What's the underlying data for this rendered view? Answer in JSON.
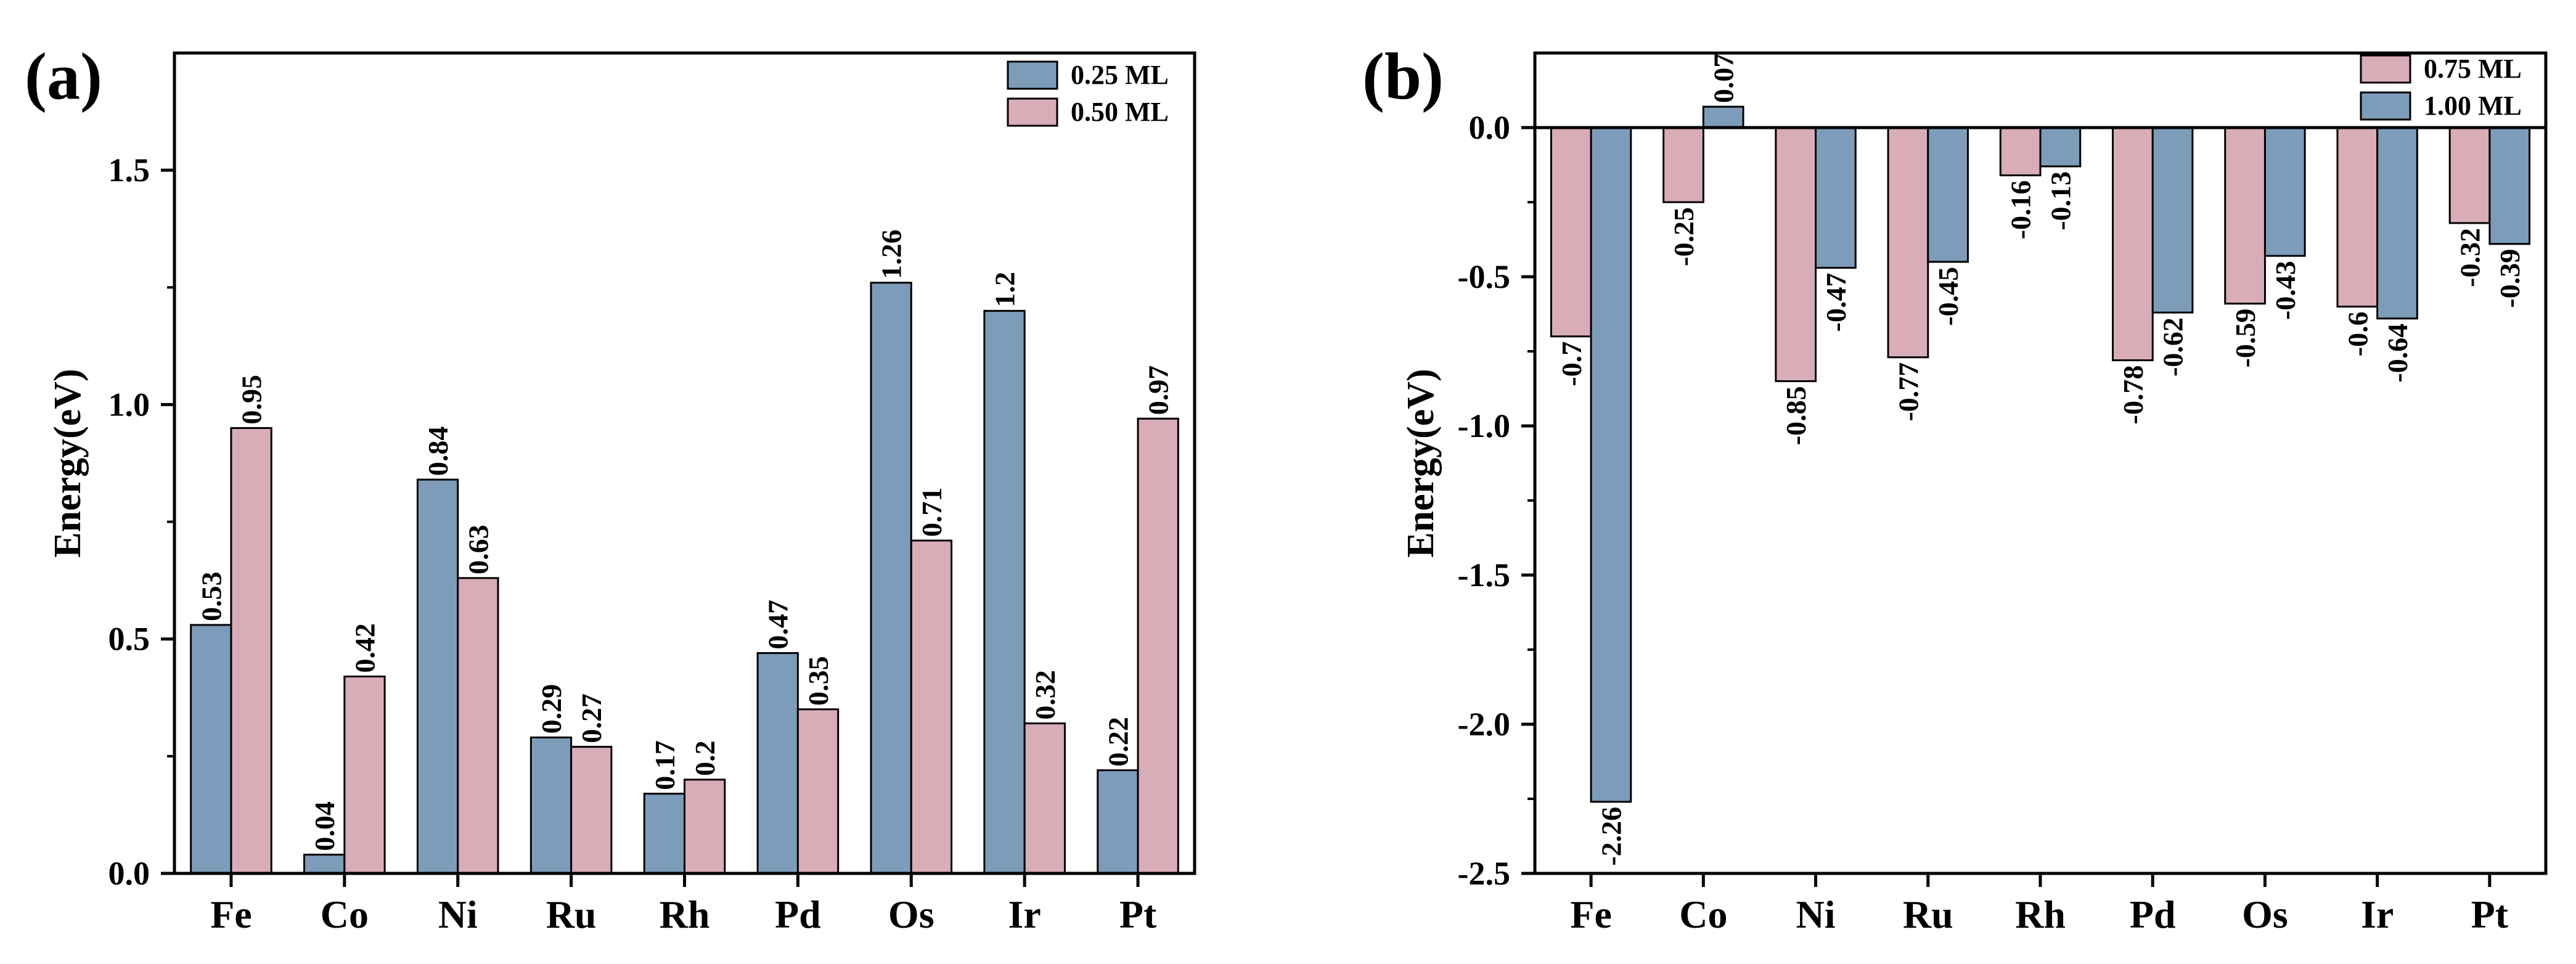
{
  "colors": {
    "blue": "#7c9cba",
    "pink": "#d9adb8",
    "axis": "#000000"
  },
  "chart_data": [
    {
      "type": "bar",
      "panel_label": "(a)",
      "title": "",
      "xlabel": "",
      "ylabel": "Energy(eV)",
      "categories": [
        "Fe",
        "Co",
        "Ni",
        "Ru",
        "Rh",
        "Pd",
        "Os",
        "Ir",
        "Pt"
      ],
      "ylim": [
        0,
        1.75
      ],
      "yticks": [
        0.0,
        0.5,
        1.0,
        1.5
      ],
      "ytick_labels": [
        "0.0",
        "0.5",
        "1.0",
        "1.5"
      ],
      "legend_position": "top-right",
      "series": [
        {
          "name": "0.25 ML",
          "color": "#7c9cba",
          "values": [
            0.53,
            0.04,
            0.84,
            0.29,
            0.17,
            0.47,
            1.26,
            1.2,
            0.22
          ],
          "labels": [
            "0.53",
            "0.04",
            "0.84",
            "0.29",
            "0.17",
            "0.47",
            "1.26",
            "1.2",
            "0.22"
          ]
        },
        {
          "name": "0.50 ML",
          "color": "#d9adb8",
          "values": [
            0.95,
            0.42,
            0.63,
            0.27,
            0.2,
            0.35,
            0.71,
            0.32,
            0.97
          ],
          "labels": [
            "0.95",
            "0.42",
            "0.63",
            "0.27",
            "0.2",
            "0.35",
            "0.71",
            "0.32",
            "0.97"
          ]
        }
      ]
    },
    {
      "type": "bar",
      "panel_label": "(b)",
      "title": "",
      "xlabel": "",
      "ylabel": "Energy(eV)",
      "categories": [
        "Fe",
        "Co",
        "Ni",
        "Ru",
        "Rh",
        "Pd",
        "Os",
        "Ir",
        "Pt"
      ],
      "ylim": [
        -2.5,
        0.25
      ],
      "yticks": [
        -2.5,
        -2.0,
        -1.5,
        -1.0,
        -0.5,
        0.0
      ],
      "ytick_labels": [
        "-2.5",
        "-2.0",
        "-1.5",
        "-1.0",
        "-0.5",
        "0.0"
      ],
      "legend_position": "top-right",
      "series": [
        {
          "name": "0.75 ML",
          "color": "#d9adb8",
          "values": [
            -0.7,
            -0.25,
            -0.85,
            -0.77,
            -0.16,
            -0.78,
            -0.59,
            -0.6,
            -0.32
          ],
          "labels": [
            "-0.7",
            "-0.25",
            "-0.85",
            "-0.77",
            "-0.16",
            "-0.78",
            "-0.59",
            "-0.6",
            "-0.32"
          ]
        },
        {
          "name": "1.00 ML",
          "color": "#7c9cba",
          "values": [
            -2.26,
            0.07,
            -0.47,
            -0.45,
            -0.13,
            -0.62,
            -0.43,
            -0.64,
            -0.39
          ],
          "labels": [
            "-2.26",
            "0.07",
            "-0.47",
            "-0.45",
            "-0.13",
            "-0.62",
            "-0.43",
            "-0.64",
            "-0.39"
          ]
        }
      ]
    }
  ]
}
